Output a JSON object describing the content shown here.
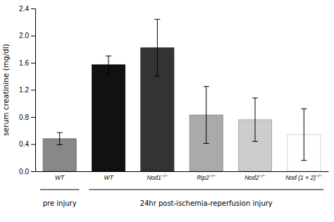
{
  "chart_data": {
    "type": "bar",
    "categories": [
      "WT",
      "WT",
      "Nod1−/−",
      "Rip2−/−",
      "Nod2−/−",
      "Nod (1 × 2)−/−"
    ],
    "values": [
      0.48,
      1.57,
      1.82,
      0.83,
      0.76,
      0.54
    ],
    "errors": [
      0.09,
      0.13,
      0.42,
      0.42,
      0.32,
      0.38
    ],
    "colors": [
      "#888888",
      "#111111",
      "#333333",
      "#aaaaaa",
      "#cccccc",
      "#ffffff"
    ],
    "ylabel": "serum creatinine (mg/dl)",
    "ylim": [
      0,
      2.4
    ],
    "yticks": [
      {
        "value": 0,
        "label": "0.0"
      },
      0.4,
      0.8,
      1.2,
      1.6,
      {
        "value": 2.0,
        "label": "2.0"
      },
      2.4
    ],
    "annotations": [
      "pre injury",
      "24hr post-ischemia-reperfusion injury"
    ],
    "grid": false
  }
}
